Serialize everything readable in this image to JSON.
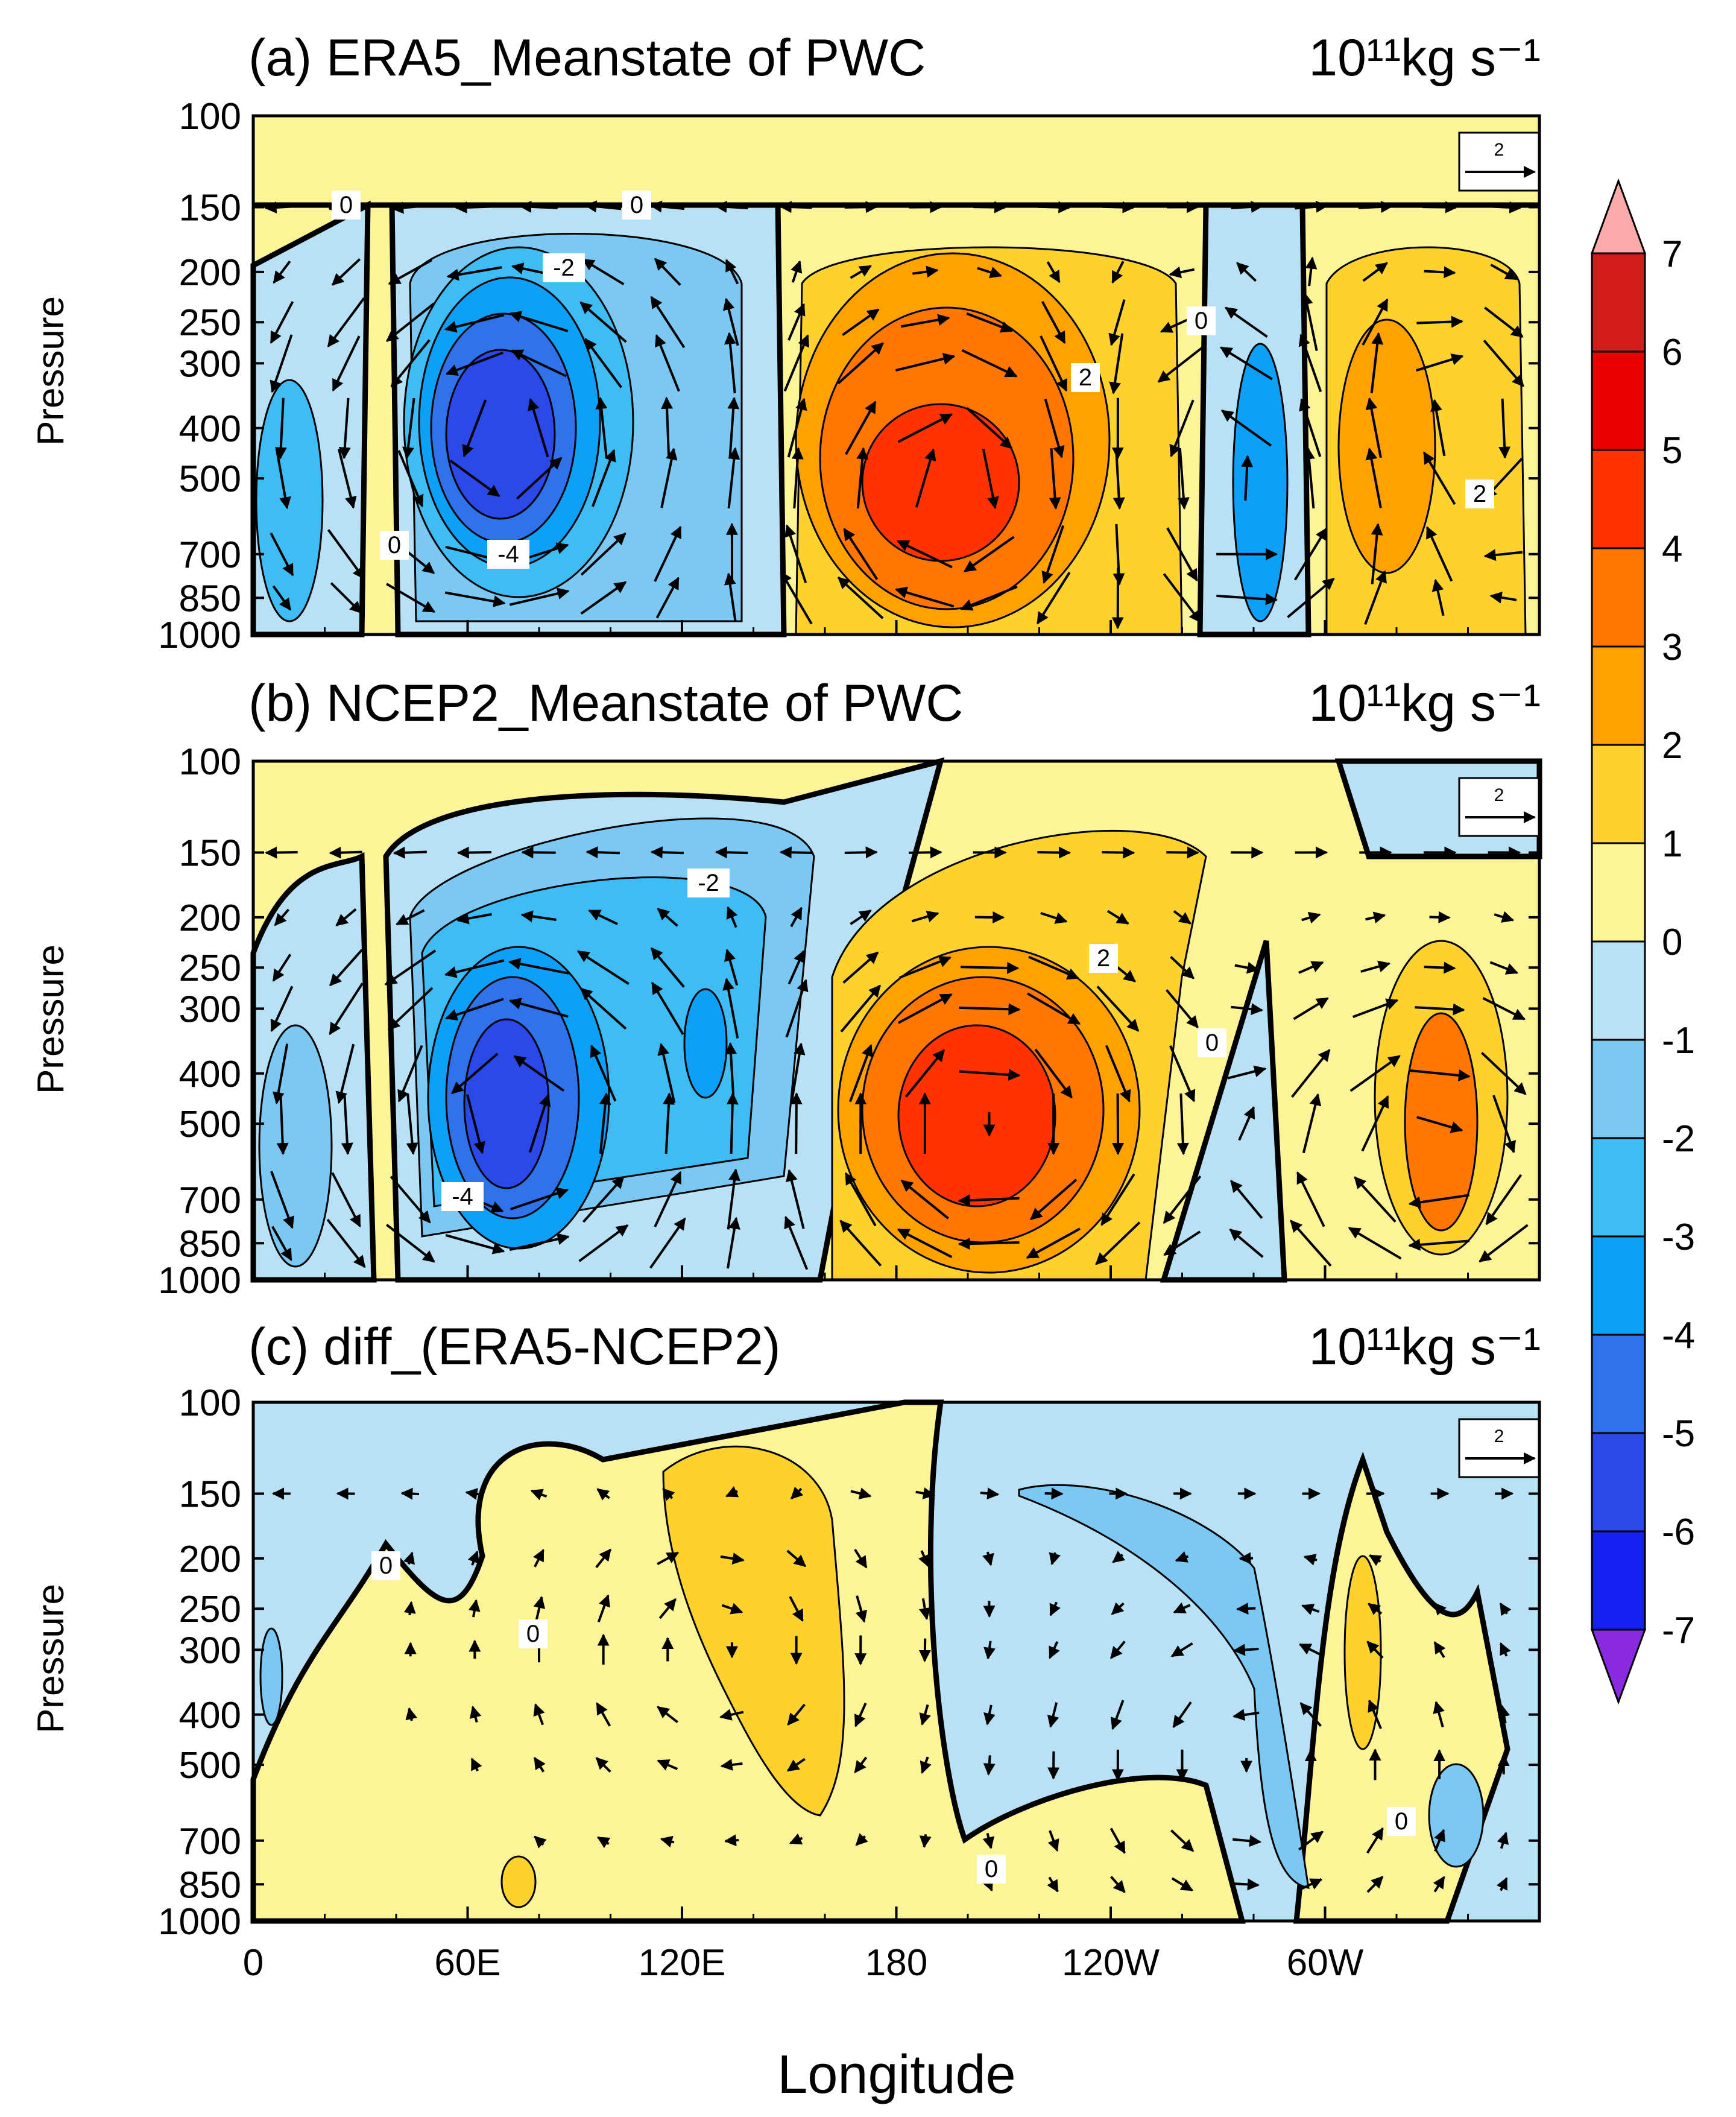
{
  "chart_data": [
    {
      "type": "contour",
      "panel": "a",
      "title": "(a) ERA5_Meanstate of PWC",
      "units": "10¹¹kg s⁻¹",
      "xlabel": "",
      "ylabel": "Pressure",
      "x_ticks": [
        "0",
        "60E",
        "120E",
        "180",
        "120W",
        "60W"
      ],
      "y_ticks": [
        "100",
        "150",
        "200",
        "250",
        "300",
        "400",
        "500",
        "700",
        "850",
        "1000"
      ],
      "xlim": [
        0,
        360
      ],
      "ylim": [
        1000,
        100
      ],
      "reference_vector": "2",
      "contour_labels": [
        "0",
        "0",
        "-2",
        "-4",
        "0",
        "0",
        "2",
        "2"
      ],
      "cells": [
        {
          "center_lon": 70,
          "center_p": 420,
          "peak": -6
        },
        {
          "center_lon": 198,
          "center_p": 520,
          "peak": 5
        },
        {
          "center_lon": 280,
          "center_p": 480,
          "peak": -5
        },
        {
          "center_lon": 320,
          "center_p": 420,
          "peak": 3
        }
      ]
    },
    {
      "type": "contour",
      "panel": "b",
      "title": "(b) NCEP2_Meanstate of PWC",
      "units": "10¹¹kg s⁻¹",
      "xlabel": "",
      "ylabel": "Pressure",
      "x_ticks": [
        "0",
        "60E",
        "120E",
        "180",
        "120W",
        "60W"
      ],
      "y_ticks": [
        "100",
        "150",
        "200",
        "250",
        "300",
        "400",
        "500",
        "700",
        "850",
        "1000"
      ],
      "xlim": [
        0,
        360
      ],
      "ylim": [
        1000,
        100
      ],
      "reference_vector": "2",
      "contour_labels": [
        "-2",
        "2",
        "0",
        "-4"
      ],
      "cells": [
        {
          "center_lon": 72,
          "center_p": 480,
          "peak": -6
        },
        {
          "center_lon": 205,
          "center_p": 500,
          "peak": 5
        },
        {
          "center_lon": 330,
          "center_p": 560,
          "peak": 3
        }
      ]
    },
    {
      "type": "contour",
      "panel": "c",
      "title": "(c) diff_(ERA5-NCEP2)",
      "units": "10¹¹kg s⁻¹",
      "xlabel": "Longitude",
      "ylabel": "Pressure",
      "x_ticks": [
        "0",
        "60E",
        "120E",
        "180",
        "120W",
        "60W"
      ],
      "y_ticks": [
        "100",
        "150",
        "200",
        "250",
        "300",
        "400",
        "500",
        "700",
        "850",
        "1000"
      ],
      "xlim": [
        0,
        360
      ],
      "ylim": [
        1000,
        100
      ],
      "reference_vector": "2",
      "contour_labels": [
        "0",
        "0",
        "0",
        "0"
      ],
      "cells": [
        {
          "center_lon": 130,
          "center_p": 300,
          "peak": 1.5
        },
        {
          "center_lon": 280,
          "center_p": 500,
          "peak": -2
        }
      ]
    }
  ],
  "colorbar": {
    "levels": [
      "7",
      "6",
      "5",
      "4",
      "3",
      "2",
      "1",
      "0",
      "-1",
      "-2",
      "-3",
      "-4",
      "-5",
      "-6",
      "-7"
    ],
    "colors": [
      "#fdaaaa",
      "#d41c1c",
      "#ee0000",
      "#ff3300",
      "#ff7700",
      "#ffa200",
      "#fdd22c",
      "#fdf497",
      "#b8e1f5",
      "#7bc8f2",
      "#3dbdf4",
      "#0da0f7",
      "#2f72ea",
      "#2b49e8",
      "#1521f2",
      "#8a2be2"
    ]
  }
}
